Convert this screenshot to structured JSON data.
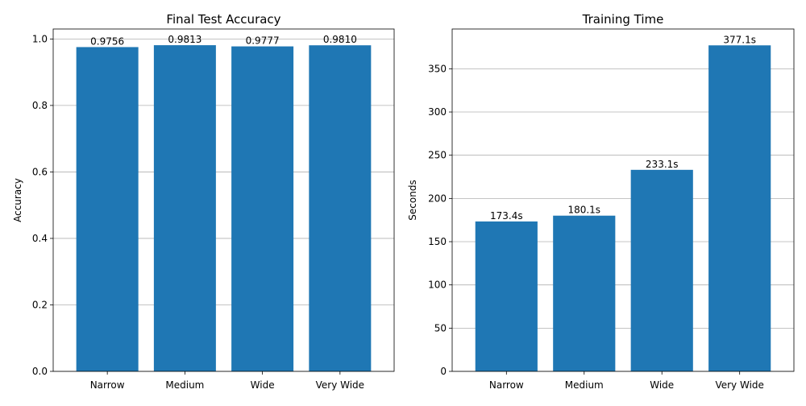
{
  "chart_data": [
    {
      "type": "bar",
      "title": "Final Test Accuracy",
      "xlabel": "",
      "ylabel": "Accuracy",
      "categories": [
        "Narrow",
        "Medium",
        "Wide",
        "Very Wide"
      ],
      "values": [
        0.9756,
        0.9813,
        0.9777,
        0.981
      ],
      "value_labels": [
        "0.9756",
        "0.9813",
        "0.9777",
        "0.9810"
      ],
      "ylim": [
        0,
        1.03
      ],
      "yticks": [
        0.0,
        0.2,
        0.4,
        0.6,
        0.8,
        1.0
      ],
      "ytick_labels": [
        "0.0",
        "0.2",
        "0.4",
        "0.6",
        "0.8",
        "1.0"
      ],
      "grid": "y",
      "bar_color": "#1f77b4"
    },
    {
      "type": "bar",
      "title": "Training Time",
      "xlabel": "",
      "ylabel": "Seconds",
      "categories": [
        "Narrow",
        "Medium",
        "Wide",
        "Very Wide"
      ],
      "values": [
        173.4,
        180.1,
        233.1,
        377.1
      ],
      "value_labels": [
        "173.4s",
        "180.1s",
        "233.1s",
        "377.1s"
      ],
      "ylim": [
        0,
        396
      ],
      "yticks": [
        0,
        50,
        100,
        150,
        200,
        250,
        300,
        350
      ],
      "ytick_labels": [
        "0",
        "50",
        "100",
        "150",
        "200",
        "250",
        "300",
        "350"
      ],
      "grid": "y",
      "bar_color": "#1f77b4"
    }
  ]
}
